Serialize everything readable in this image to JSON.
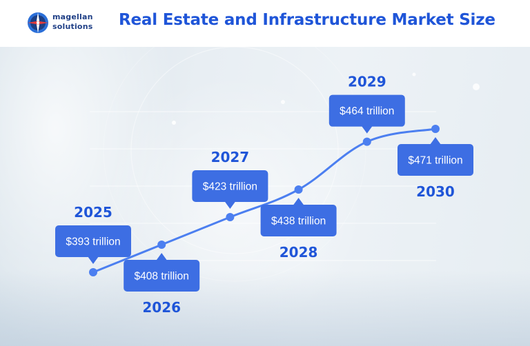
{
  "brand": {
    "line1": "magellan",
    "line2": "solutions"
  },
  "title": "Real Estate and Infrastructure Market Size",
  "colors": {
    "accent": "#1f55d8",
    "line": "#4c7ff0",
    "callout": "#3d6ee3"
  },
  "chart_data": {
    "type": "line",
    "x": [
      "2025",
      "2026",
      "2027",
      "2028",
      "2029",
      "2030"
    ],
    "values": [
      393,
      408,
      423,
      438,
      464,
      471
    ],
    "labels": [
      "$393 trillion",
      "$408 trillion",
      "$423 trillion",
      "$438 trillion",
      "$464 trillion",
      "$471 trillion"
    ],
    "unit": "trillion USD",
    "grid": true,
    "legend": "none"
  }
}
